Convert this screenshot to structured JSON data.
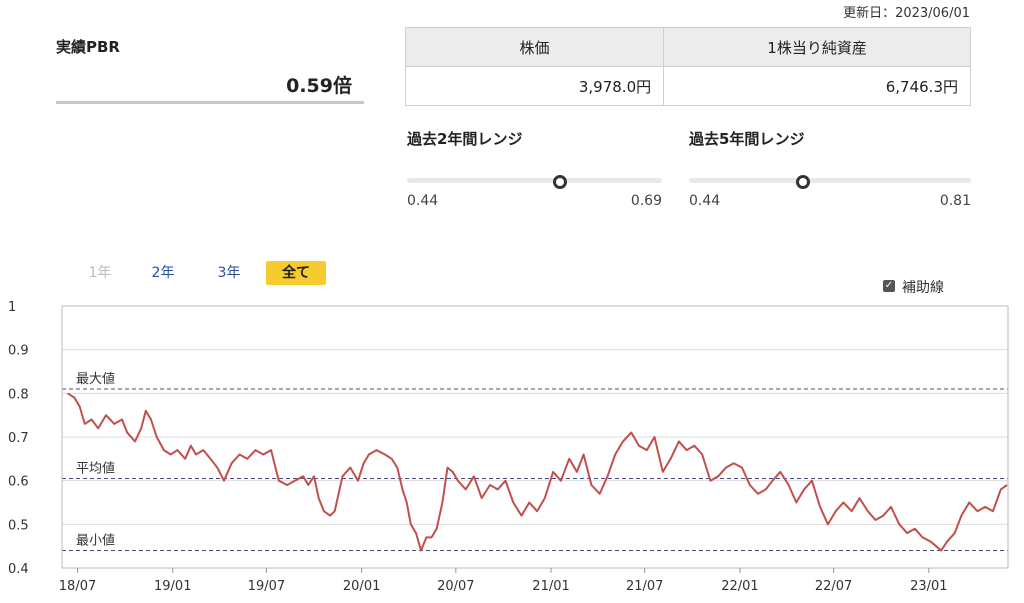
{
  "updated_label": "更新日：2023/06/01",
  "pbr": {
    "label": "実績PBR",
    "value": "0.59倍"
  },
  "price_table": {
    "headers": [
      "株価",
      "1株当り純資産"
    ],
    "values": [
      "3,978.0円",
      "6,746.3円"
    ]
  },
  "ranges": [
    {
      "title": "過去2年間レンジ",
      "min": "0.44",
      "max": "0.69",
      "current": 0.59
    },
    {
      "title": "過去5年間レンジ",
      "min": "0.44",
      "max": "0.81",
      "current": 0.59
    }
  ],
  "tabs": [
    {
      "label": "1年",
      "state": "disabled"
    },
    {
      "label": "2年",
      "state": "link"
    },
    {
      "label": "3年",
      "state": "link"
    },
    {
      "label": "全て",
      "state": "active"
    }
  ],
  "aux_line": {
    "label": "補助線",
    "checked": true
  },
  "chart_data": {
    "type": "line",
    "ylim": [
      0.4,
      1.0
    ],
    "yticks": [
      "0.4",
      "0.5",
      "0.6",
      "0.7",
      "0.8",
      "0.9",
      "1"
    ],
    "x_start": "2018/06",
    "x_end": "2023/06",
    "xticks": [
      "18/07",
      "19/01",
      "19/07",
      "20/01",
      "20/07",
      "21/01",
      "21/07",
      "22/01",
      "22/07",
      "23/01"
    ],
    "grid": true,
    "reference_lines": [
      {
        "label": "最大値",
        "value": 0.81
      },
      {
        "label": "平均値",
        "value": 0.605
      },
      {
        "label": "最小値",
        "value": 0.44
      }
    ],
    "series": [
      {
        "color": "#c0504d",
        "points": [
          [
            "2018/06/12",
            0.8
          ],
          [
            "2018/06/25",
            0.79
          ],
          [
            "2018/07/05",
            0.77
          ],
          [
            "2018/07/15",
            0.73
          ],
          [
            "2018/07/28",
            0.74
          ],
          [
            "2018/08/10",
            0.72
          ],
          [
            "2018/08/25",
            0.75
          ],
          [
            "2018/09/10",
            0.73
          ],
          [
            "2018/09/25",
            0.74
          ],
          [
            "2018/10/05",
            0.71
          ],
          [
            "2018/10/20",
            0.69
          ],
          [
            "2018/11/01",
            0.72
          ],
          [
            "2018/11/10",
            0.76
          ],
          [
            "2018/11/20",
            0.74
          ],
          [
            "2018/12/01",
            0.7
          ],
          [
            "2018/12/15",
            0.67
          ],
          [
            "2018/12/28",
            0.66
          ],
          [
            "2019/01/10",
            0.67
          ],
          [
            "2019/01/25",
            0.65
          ],
          [
            "2019/02/05",
            0.68
          ],
          [
            "2019/02/15",
            0.66
          ],
          [
            "2019/03/01",
            0.67
          ],
          [
            "2019/03/15",
            0.65
          ],
          [
            "2019/03/28",
            0.63
          ],
          [
            "2019/04/10",
            0.6
          ],
          [
            "2019/04/25",
            0.64
          ],
          [
            "2019/05/10",
            0.66
          ],
          [
            "2019/05/25",
            0.65
          ],
          [
            "2019/06/10",
            0.67
          ],
          [
            "2019/06/25",
            0.66
          ],
          [
            "2019/07/10",
            0.67
          ],
          [
            "2019/07/25",
            0.6
          ],
          [
            "2019/08/10",
            0.59
          ],
          [
            "2019/08/25",
            0.6
          ],
          [
            "2019/09/10",
            0.61
          ],
          [
            "2019/09/20",
            0.59
          ],
          [
            "2019/10/01",
            0.61
          ],
          [
            "2019/10/10",
            0.56
          ],
          [
            "2019/10/20",
            0.53
          ],
          [
            "2019/11/01",
            0.52
          ],
          [
            "2019/11/10",
            0.53
          ],
          [
            "2019/11/25",
            0.61
          ],
          [
            "2019/12/10",
            0.63
          ],
          [
            "2019/12/25",
            0.6
          ],
          [
            "2020/01/05",
            0.64
          ],
          [
            "2020/01/15",
            0.66
          ],
          [
            "2020/01/30",
            0.67
          ],
          [
            "2020/02/15",
            0.66
          ],
          [
            "2020/02/28",
            0.65
          ],
          [
            "2020/03/10",
            0.63
          ],
          [
            "2020/03/20",
            0.58
          ],
          [
            "2020/03/28",
            0.55
          ],
          [
            "2020/04/05",
            0.5
          ],
          [
            "2020/04/15",
            0.48
          ],
          [
            "2020/04/25",
            0.44
          ],
          [
            "2020/05/05",
            0.47
          ],
          [
            "2020/05/15",
            0.47
          ],
          [
            "2020/05/25",
            0.49
          ],
          [
            "2020/06/05",
            0.55
          ],
          [
            "2020/06/15",
            0.63
          ],
          [
            "2020/06/25",
            0.62
          ],
          [
            "2020/07/05",
            0.6
          ],
          [
            "2020/07/20",
            0.58
          ],
          [
            "2020/08/05",
            0.61
          ],
          [
            "2020/08/20",
            0.56
          ],
          [
            "2020/09/05",
            0.59
          ],
          [
            "2020/09/20",
            0.58
          ],
          [
            "2020/10/05",
            0.6
          ],
          [
            "2020/10/20",
            0.55
          ],
          [
            "2020/11/05",
            0.52
          ],
          [
            "2020/11/20",
            0.55
          ],
          [
            "2020/12/05",
            0.53
          ],
          [
            "2020/12/20",
            0.56
          ],
          [
            "2021/01/05",
            0.62
          ],
          [
            "2021/01/20",
            0.6
          ],
          [
            "2021/02/05",
            0.65
          ],
          [
            "2021/02/20",
            0.62
          ],
          [
            "2021/03/05",
            0.66
          ],
          [
            "2021/03/20",
            0.59
          ],
          [
            "2021/04/05",
            0.57
          ],
          [
            "2021/04/20",
            0.61
          ],
          [
            "2021/05/05",
            0.66
          ],
          [
            "2021/05/20",
            0.69
          ],
          [
            "2021/06/05",
            0.71
          ],
          [
            "2021/06/20",
            0.68
          ],
          [
            "2021/07/05",
            0.67
          ],
          [
            "2021/07/20",
            0.7
          ],
          [
            "2021/08/05",
            0.62
          ],
          [
            "2021/08/20",
            0.65
          ],
          [
            "2021/09/05",
            0.69
          ],
          [
            "2021/09/20",
            0.67
          ],
          [
            "2021/10/05",
            0.68
          ],
          [
            "2021/10/20",
            0.66
          ],
          [
            "2021/11/05",
            0.6
          ],
          [
            "2021/11/20",
            0.61
          ],
          [
            "2021/12/05",
            0.63
          ],
          [
            "2021/12/20",
            0.64
          ],
          [
            "2022/01/05",
            0.63
          ],
          [
            "2022/01/20",
            0.59
          ],
          [
            "2022/02/05",
            0.57
          ],
          [
            "2022/02/20",
            0.58
          ],
          [
            "2022/03/05",
            0.6
          ],
          [
            "2022/03/20",
            0.62
          ],
          [
            "2022/04/05",
            0.59
          ],
          [
            "2022/04/20",
            0.55
          ],
          [
            "2022/05/05",
            0.58
          ],
          [
            "2022/05/20",
            0.6
          ],
          [
            "2022/06/05",
            0.54
          ],
          [
            "2022/06/20",
            0.5
          ],
          [
            "2022/07/05",
            0.53
          ],
          [
            "2022/07/20",
            0.55
          ],
          [
            "2022/08/05",
            0.53
          ],
          [
            "2022/08/20",
            0.56
          ],
          [
            "2022/09/05",
            0.53
          ],
          [
            "2022/09/20",
            0.51
          ],
          [
            "2022/10/05",
            0.52
          ],
          [
            "2022/10/20",
            0.54
          ],
          [
            "2022/11/05",
            0.5
          ],
          [
            "2022/11/20",
            0.48
          ],
          [
            "2022/12/05",
            0.49
          ],
          [
            "2022/12/20",
            0.47
          ],
          [
            "2023/01/05",
            0.46
          ],
          [
            "2023/01/15",
            0.45
          ],
          [
            "2023/01/25",
            0.44
          ],
          [
            "2023/02/05",
            0.46
          ],
          [
            "2023/02/20",
            0.48
          ],
          [
            "2023/03/05",
            0.52
          ],
          [
            "2023/03/20",
            0.55
          ],
          [
            "2023/04/05",
            0.53
          ],
          [
            "2023/04/20",
            0.54
          ],
          [
            "2023/05/05",
            0.53
          ],
          [
            "2023/05/20",
            0.58
          ],
          [
            "2023/06/01",
            0.59
          ]
        ]
      }
    ]
  }
}
